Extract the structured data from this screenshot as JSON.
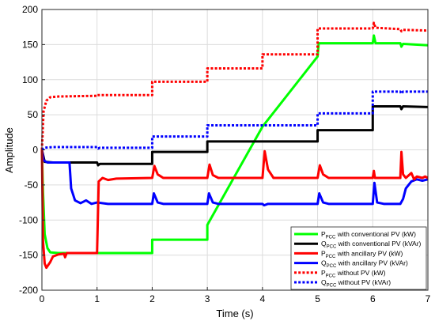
{
  "chart_data": {
    "type": "line",
    "xlabel": "Time (s)",
    "ylabel": "Amplitude",
    "xlim": [
      0,
      7
    ],
    "ylim": [
      -200,
      200
    ],
    "xticks": [
      0,
      1,
      2,
      3,
      4,
      5,
      6,
      7
    ],
    "yticks": [
      -200,
      -150,
      -100,
      -50,
      0,
      50,
      100,
      150,
      200
    ],
    "grid": true,
    "legend_position": "bottom-right",
    "series": [
      {
        "name_main": "P",
        "name_sub": "PCC",
        "name_rest": " with conventional PV (kW)",
        "color": "#00ff00",
        "style": "solid",
        "points": [
          [
            0,
            0
          ],
          [
            0.02,
            -60
          ],
          [
            0.05,
            -120
          ],
          [
            0.1,
            -140
          ],
          [
            0.15,
            -146
          ],
          [
            0.3,
            -147
          ],
          [
            2.0,
            -147
          ],
          [
            2.0,
            -128
          ],
          [
            3.0,
            -128
          ],
          [
            3.0,
            -107
          ],
          [
            4.0,
            33
          ],
          [
            5.0,
            133
          ],
          [
            5.02,
            152
          ],
          [
            6.0,
            152
          ],
          [
            6.02,
            163
          ],
          [
            6.05,
            152
          ],
          [
            6.5,
            152
          ],
          [
            6.52,
            147
          ],
          [
            6.55,
            151
          ],
          [
            7.0,
            149
          ]
        ]
      },
      {
        "name_main": "Q",
        "name_sub": "PCC",
        "name_rest": " with conventional PV (kVAr)",
        "color": "#000000",
        "style": "solid",
        "points": [
          [
            0,
            0
          ],
          [
            0.05,
            -17
          ],
          [
            0.2,
            -18
          ],
          [
            1.0,
            -18
          ],
          [
            1.02,
            -22
          ],
          [
            1.05,
            -20
          ],
          [
            2.0,
            -20
          ],
          [
            2.0,
            -3
          ],
          [
            3.0,
            -3
          ],
          [
            3.0,
            12
          ],
          [
            5.0,
            12
          ],
          [
            5.0,
            28
          ],
          [
            6.0,
            28
          ],
          [
            6.0,
            62
          ],
          [
            6.5,
            62
          ],
          [
            6.52,
            58
          ],
          [
            6.55,
            62
          ],
          [
            7.0,
            61
          ]
        ]
      },
      {
        "name_main": "P",
        "name_sub": "PCC",
        "name_rest": " with ancillary PV (kW)",
        "color": "#ff0000",
        "style": "solid",
        "points": [
          [
            0,
            0
          ],
          [
            0.02,
            -130
          ],
          [
            0.05,
            -162
          ],
          [
            0.08,
            -168
          ],
          [
            0.15,
            -160
          ],
          [
            0.2,
            -152
          ],
          [
            0.3,
            -149
          ],
          [
            0.4,
            -148
          ],
          [
            0.42,
            -153
          ],
          [
            0.45,
            -147
          ],
          [
            1.0,
            -147
          ],
          [
            1.03,
            -45
          ],
          [
            1.1,
            -40
          ],
          [
            1.2,
            -43
          ],
          [
            1.35,
            -41
          ],
          [
            2.0,
            -40
          ],
          [
            2.04,
            -23
          ],
          [
            2.1,
            -35
          ],
          [
            2.2,
            -40
          ],
          [
            3.0,
            -40
          ],
          [
            3.04,
            -21
          ],
          [
            3.1,
            -36
          ],
          [
            3.2,
            -40
          ],
          [
            4.0,
            -40
          ],
          [
            4.04,
            -2
          ],
          [
            4.1,
            -28
          ],
          [
            4.2,
            -40
          ],
          [
            5.0,
            -40
          ],
          [
            5.04,
            -22
          ],
          [
            5.1,
            -35
          ],
          [
            5.2,
            -40
          ],
          [
            6.0,
            -40
          ],
          [
            6.02,
            -30
          ],
          [
            6.04,
            -40
          ],
          [
            6.5,
            -40
          ],
          [
            6.52,
            -3
          ],
          [
            6.55,
            -35
          ],
          [
            6.6,
            -40
          ],
          [
            6.7,
            -33
          ],
          [
            6.75,
            -42
          ],
          [
            6.8,
            -38
          ],
          [
            6.9,
            -40
          ],
          [
            6.95,
            -38
          ],
          [
            7.0,
            -40
          ]
        ]
      },
      {
        "name_main": "Q",
        "name_sub": "PCC",
        "name_rest": " with ancillary PV (kVAr)",
        "color": "#0000ff",
        "style": "solid",
        "points": [
          [
            0,
            0
          ],
          [
            0.03,
            -15
          ],
          [
            0.1,
            -18
          ],
          [
            0.5,
            -18
          ],
          [
            0.53,
            -55
          ],
          [
            0.6,
            -72
          ],
          [
            0.7,
            -76
          ],
          [
            0.8,
            -72
          ],
          [
            0.9,
            -77
          ],
          [
            1.0,
            -75
          ],
          [
            1.2,
            -77
          ],
          [
            2.0,
            -77
          ],
          [
            2.03,
            -62
          ],
          [
            2.1,
            -75
          ],
          [
            2.2,
            -77
          ],
          [
            3.0,
            -77
          ],
          [
            3.03,
            -62
          ],
          [
            3.1,
            -75
          ],
          [
            3.2,
            -77
          ],
          [
            4.0,
            -77
          ],
          [
            4.03,
            -79
          ],
          [
            4.1,
            -77
          ],
          [
            5.0,
            -77
          ],
          [
            5.03,
            -62
          ],
          [
            5.1,
            -75
          ],
          [
            5.2,
            -77
          ],
          [
            6.0,
            -77
          ],
          [
            6.03,
            -47
          ],
          [
            6.08,
            -75
          ],
          [
            6.2,
            -77
          ],
          [
            6.5,
            -77
          ],
          [
            6.55,
            -70
          ],
          [
            6.6,
            -55
          ],
          [
            6.7,
            -45
          ],
          [
            6.8,
            -42
          ],
          [
            6.9,
            -44
          ],
          [
            7.0,
            -42
          ]
        ]
      },
      {
        "name_main": "P",
        "name_sub": "PCC",
        "name_rest": " without PV (kW)",
        "color": "#ff0000",
        "style": "dotted",
        "points": [
          [
            0,
            0
          ],
          [
            0.03,
            55
          ],
          [
            0.08,
            70
          ],
          [
            0.15,
            75
          ],
          [
            0.3,
            76
          ],
          [
            1.0,
            77
          ],
          [
            1.0,
            78
          ],
          [
            2.0,
            78
          ],
          [
            2.0,
            97
          ],
          [
            3.0,
            97
          ],
          [
            3.0,
            116
          ],
          [
            4.0,
            116
          ],
          [
            4.0,
            136
          ],
          [
            5.0,
            136
          ],
          [
            5.0,
            173
          ],
          [
            6.0,
            173
          ],
          [
            6.02,
            181
          ],
          [
            6.05,
            174
          ],
          [
            6.5,
            172
          ],
          [
            6.52,
            169
          ],
          [
            6.55,
            171
          ],
          [
            7.0,
            170
          ]
        ]
      },
      {
        "name_main": "Q",
        "name_sub": "PCC",
        "name_rest": " without PV (kVAr)",
        "color": "#0000ff",
        "style": "dotted",
        "points": [
          [
            0,
            0
          ],
          [
            0.05,
            3
          ],
          [
            0.2,
            4
          ],
          [
            1.0,
            4
          ],
          [
            1.02,
            2
          ],
          [
            1.05,
            3
          ],
          [
            2.0,
            3
          ],
          [
            2.0,
            19
          ],
          [
            3.0,
            19
          ],
          [
            3.0,
            35
          ],
          [
            5.0,
            35
          ],
          [
            5.0,
            52
          ],
          [
            6.0,
            52
          ],
          [
            6.0,
            83
          ],
          [
            6.5,
            83
          ],
          [
            6.52,
            80
          ],
          [
            6.55,
            83
          ],
          [
            7.0,
            83
          ]
        ]
      }
    ]
  }
}
